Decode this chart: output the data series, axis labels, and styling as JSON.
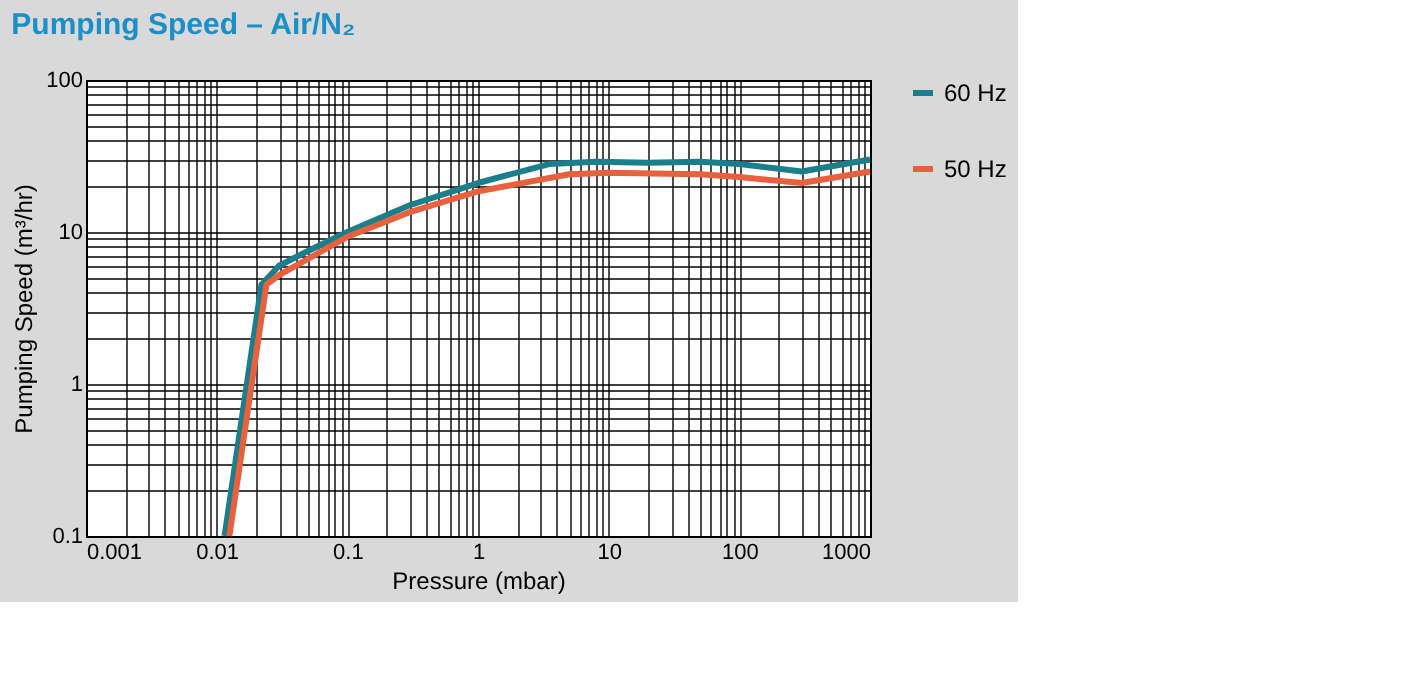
{
  "chart_data": {
    "type": "line",
    "title": "Pumping Speed – Air/N₂",
    "xlabel": "Pressure (mbar)",
    "ylabel": "Pumping Speed (m³/hr)",
    "log": "xy",
    "grid": true,
    "legend": "right",
    "line_style": "solid",
    "marker": "none",
    "xlim": [
      0.001,
      1000
    ],
    "ylim": [
      0.1,
      100
    ],
    "xticks": [
      0.001,
      {
        "value": 0.002,
        "label": null
      },
      {
        "value": 0.003,
        "label": null
      },
      {
        "value": 0.004,
        "label": null
      },
      {
        "value": 0.005,
        "label": null
      },
      {
        "value": 0.006,
        "label": null
      },
      {
        "value": 0.007,
        "label": null
      },
      {
        "value": 0.008,
        "label": null
      },
      {
        "value": 0.009,
        "label": null
      },
      0.01,
      {
        "value": 0.02,
        "label": null
      },
      {
        "value": 0.03,
        "label": null
      },
      {
        "value": 0.04,
        "label": null
      },
      {
        "value": 0.05,
        "label": null
      },
      {
        "value": 0.06,
        "label": null
      },
      {
        "value": 0.07,
        "label": null
      },
      {
        "value": 0.08,
        "label": null
      },
      {
        "value": 0.09,
        "label": null
      },
      0.1,
      {
        "value": 0.2,
        "label": null
      },
      {
        "value": 0.3,
        "label": null
      },
      {
        "value": 0.4,
        "label": null
      },
      {
        "value": 0.5,
        "label": null
      },
      {
        "value": 0.6,
        "label": null
      },
      {
        "value": 0.7,
        "label": null
      },
      {
        "value": 0.8,
        "label": null
      },
      {
        "value": 0.9,
        "label": null
      },
      1,
      {
        "value": 2,
        "label": null
      },
      {
        "value": 3,
        "label": null
      },
      {
        "value": 4,
        "label": null
      },
      {
        "value": 5,
        "label": null
      },
      {
        "value": 6,
        "label": null
      },
      {
        "value": 7,
        "label": null
      },
      {
        "value": 8,
        "label": null
      },
      {
        "value": 9,
        "label": null
      },
      10,
      {
        "value": 20,
        "label": null
      },
      {
        "value": 30,
        "label": null
      },
      {
        "value": 40,
        "label": null
      },
      {
        "value": 50,
        "label": null
      },
      {
        "value": 60,
        "label": null
      },
      {
        "value": 70,
        "label": null
      },
      {
        "value": 80,
        "label": null
      },
      {
        "value": 90,
        "label": null
      },
      100,
      {
        "value": 200,
        "label": null
      },
      {
        "value": 300,
        "label": null
      },
      {
        "value": 400,
        "label": null
      },
      {
        "value": 500,
        "label": null
      },
      {
        "value": 600,
        "label": null
      },
      {
        "value": 700,
        "label": null
      },
      {
        "value": 800,
        "label": null
      },
      {
        "value": 900,
        "label": null
      },
      1000
    ],
    "yticks": [
      0.1,
      {
        "value": 0.2,
        "label": null
      },
      {
        "value": 0.3,
        "label": null
      },
      {
        "value": 0.4,
        "label": null
      },
      {
        "value": 0.5,
        "label": null
      },
      {
        "value": 0.6,
        "label": null
      },
      {
        "value": 0.7,
        "label": null
      },
      {
        "value": 0.8,
        "label": null
      },
      {
        "value": 0.9,
        "label": null
      },
      1,
      {
        "value": 2,
        "label": null
      },
      {
        "value": 3,
        "label": null
      },
      {
        "value": 4,
        "label": null
      },
      {
        "value": 5,
        "label": null
      },
      {
        "value": 6,
        "label": null
      },
      {
        "value": 7,
        "label": null
      },
      {
        "value": 8,
        "label": null
      },
      {
        "value": 9,
        "label": null
      },
      10,
      {
        "value": 20,
        "label": null
      },
      {
        "value": 30,
        "label": null
      },
      {
        "value": 40,
        "label": null
      },
      {
        "value": 50,
        "label": null
      },
      {
        "value": 60,
        "label": null
      },
      {
        "value": 70,
        "label": null
      },
      {
        "value": 80,
        "label": null
      },
      {
        "value": 90,
        "label": null
      },
      100
    ],
    "series": [
      {
        "name": "60 Hz",
        "color": "#1a7f8a",
        "x": [
          0.0115,
          0.022,
          0.03,
          0.05,
          0.1,
          0.3,
          1,
          3.5,
          8,
          20,
          50,
          100,
          300,
          1000
        ],
        "values": [
          0.1,
          4.5,
          6,
          7.5,
          10,
          15,
          21,
          28,
          29,
          28.5,
          29,
          28,
          25,
          30
        ]
      },
      {
        "name": "50 Hz",
        "color": "#e8603c",
        "x": [
          0.0125,
          0.024,
          0.03,
          0.1,
          0.3,
          1,
          5,
          10,
          50,
          100,
          300,
          1000
        ],
        "values": [
          0.1,
          4.5,
          5.2,
          9.3,
          13.5,
          18.5,
          24,
          24.5,
          24,
          23,
          21,
          25
        ]
      }
    ]
  }
}
